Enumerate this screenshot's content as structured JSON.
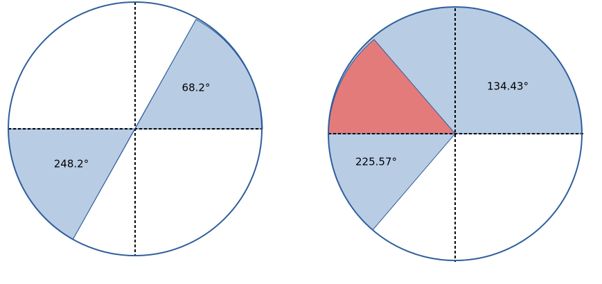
{
  "diagrams": [
    {
      "labels": [
        {
          "text": "68.2°"
        },
        {
          "text": "248.2°"
        }
      ]
    },
    {
      "labels": [
        {
          "text": "134.43°"
        },
        {
          "text": "225.57°"
        }
      ]
    }
  ]
}
